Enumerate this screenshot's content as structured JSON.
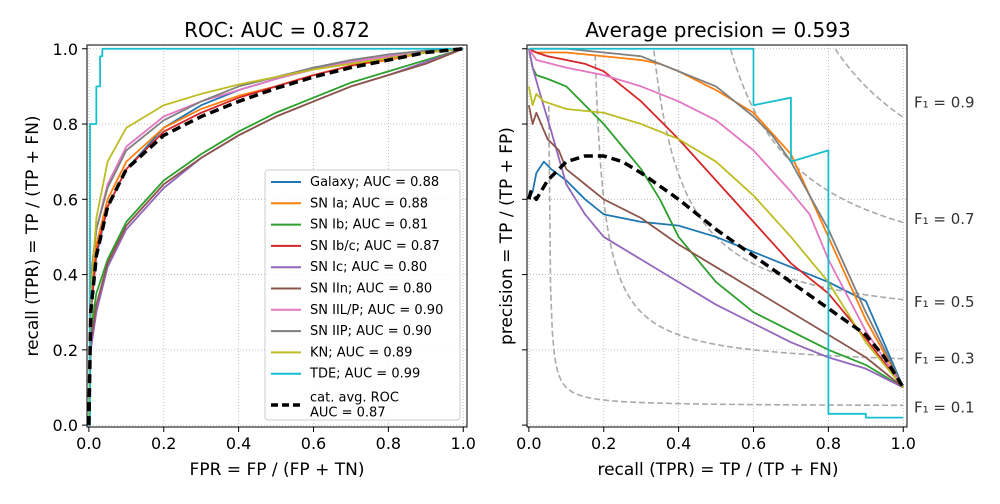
{
  "chart_data": [
    {
      "type": "line",
      "title": "ROC: AUC = 0.872",
      "xlabel": "FPR = FP / (FP + TN)",
      "ylabel": "recall (TPR) = TP / (TP + FN)",
      "xlim": [
        0,
        1
      ],
      "ylim": [
        0,
        1
      ],
      "xticks": [
        "0.0",
        "0.2",
        "0.4",
        "0.6",
        "0.8",
        "1.0"
      ],
      "yticks": [
        "0.0",
        "0.2",
        "0.4",
        "0.6",
        "0.8",
        "1.0"
      ],
      "grid": true,
      "legend_position": "lower-right",
      "series": [
        {
          "name": "Galaxy; AUC = 0.88",
          "color": "#1f77b4",
          "x": [
            0,
            0.005,
            0.02,
            0.05,
            0.1,
            0.2,
            0.3,
            0.4,
            0.5,
            0.6,
            0.7,
            0.8,
            0.9,
            1.0
          ],
          "y": [
            0,
            0.3,
            0.45,
            0.58,
            0.68,
            0.79,
            0.85,
            0.89,
            0.92,
            0.95,
            0.965,
            0.98,
            0.99,
            1.0
          ]
        },
        {
          "name": "SN Ia; AUC = 0.88",
          "color": "#ff7f0e",
          "x": [
            0,
            0.005,
            0.02,
            0.05,
            0.1,
            0.2,
            0.3,
            0.4,
            0.5,
            0.6,
            0.7,
            0.8,
            0.9,
            1.0
          ],
          "y": [
            0,
            0.32,
            0.48,
            0.6,
            0.7,
            0.79,
            0.84,
            0.875,
            0.9,
            0.93,
            0.955,
            0.97,
            0.99,
            1.0
          ]
        },
        {
          "name": "SN Ib; AUC = 0.81",
          "color": "#2ca02c",
          "x": [
            0,
            0.005,
            0.02,
            0.05,
            0.1,
            0.2,
            0.3,
            0.4,
            0.5,
            0.6,
            0.7,
            0.8,
            0.9,
            1.0
          ],
          "y": [
            0,
            0.25,
            0.35,
            0.44,
            0.54,
            0.65,
            0.72,
            0.78,
            0.83,
            0.87,
            0.91,
            0.94,
            0.97,
            1.0
          ]
        },
        {
          "name": "SN Ib/c; AUC = 0.87",
          "color": "#d62728",
          "x": [
            0,
            0.005,
            0.02,
            0.05,
            0.1,
            0.2,
            0.3,
            0.4,
            0.5,
            0.6,
            0.7,
            0.8,
            0.9,
            1.0
          ],
          "y": [
            0,
            0.3,
            0.46,
            0.58,
            0.68,
            0.78,
            0.83,
            0.87,
            0.9,
            0.93,
            0.955,
            0.975,
            0.99,
            1.0
          ]
        },
        {
          "name": "SN Ic; AUC = 0.80",
          "color": "#9467bd",
          "x": [
            0,
            0.005,
            0.02,
            0.05,
            0.1,
            0.2,
            0.3,
            0.4,
            0.5,
            0.6,
            0.7,
            0.8,
            0.9,
            1.0
          ],
          "y": [
            0,
            0.2,
            0.3,
            0.42,
            0.52,
            0.63,
            0.71,
            0.77,
            0.82,
            0.86,
            0.9,
            0.93,
            0.965,
            1.0
          ]
        },
        {
          "name": "SN IIn; AUC = 0.80",
          "color": "#8c564b",
          "x": [
            0,
            0.005,
            0.02,
            0.05,
            0.1,
            0.2,
            0.3,
            0.4,
            0.5,
            0.6,
            0.7,
            0.8,
            0.9,
            1.0
          ],
          "y": [
            0,
            0.22,
            0.32,
            0.43,
            0.53,
            0.64,
            0.71,
            0.77,
            0.82,
            0.86,
            0.9,
            0.93,
            0.96,
            1.0
          ]
        },
        {
          "name": "SN IIL/P; AUC = 0.90",
          "color": "#e377c2",
          "x": [
            0,
            0.005,
            0.02,
            0.05,
            0.1,
            0.2,
            0.3,
            0.4,
            0.5,
            0.6,
            0.7,
            0.8,
            0.9,
            1.0
          ],
          "y": [
            0,
            0.4,
            0.52,
            0.64,
            0.74,
            0.82,
            0.86,
            0.89,
            0.92,
            0.945,
            0.965,
            0.98,
            0.99,
            1.0
          ]
        },
        {
          "name": "SN IIP; AUC = 0.90",
          "color": "#7f7f7f",
          "x": [
            0,
            0.005,
            0.02,
            0.05,
            0.1,
            0.2,
            0.3,
            0.4,
            0.5,
            0.6,
            0.7,
            0.8,
            0.9,
            1.0
          ],
          "y": [
            0,
            0.38,
            0.52,
            0.63,
            0.73,
            0.81,
            0.86,
            0.9,
            0.925,
            0.95,
            0.97,
            0.985,
            0.995,
            1.0
          ]
        },
        {
          "name": "KN; AUC = 0.89",
          "color": "#bcbd22",
          "x": [
            0,
            0.005,
            0.02,
            0.05,
            0.1,
            0.2,
            0.3,
            0.4,
            0.5,
            0.6,
            0.7,
            0.8,
            0.9,
            1.0
          ],
          "y": [
            0,
            0.35,
            0.55,
            0.7,
            0.79,
            0.85,
            0.88,
            0.905,
            0.925,
            0.945,
            0.96,
            0.975,
            0.99,
            1.0
          ]
        },
        {
          "name": "TDE; AUC = 0.99",
          "color": "#17becf",
          "x": [
            0,
            0.003,
            0.003,
            0.02,
            0.02,
            0.03,
            0.03,
            0.036,
            0.036,
            1.0
          ],
          "y": [
            0,
            0,
            0.8,
            0.8,
            0.9,
            0.9,
            0.98,
            0.98,
            1.0,
            1.0
          ]
        },
        {
          "name": "cat. avg. ROC\nAUC = 0.87",
          "color": "#000000",
          "dashed": true,
          "x": [
            0,
            0.005,
            0.02,
            0.05,
            0.1,
            0.2,
            0.3,
            0.4,
            0.5,
            0.6,
            0.7,
            0.8,
            0.9,
            1.0
          ],
          "y": [
            0,
            0.3,
            0.45,
            0.58,
            0.68,
            0.77,
            0.82,
            0.86,
            0.895,
            0.925,
            0.95,
            0.97,
            0.99,
            1.0
          ]
        }
      ]
    },
    {
      "type": "line",
      "title": "Average precision = 0.593",
      "xlabel": "recall (TPR) = TP / (TP + FN)",
      "ylabel": "precision = TP / (TP + FP)",
      "xlim": [
        0,
        1
      ],
      "ylim": [
        0,
        1
      ],
      "xticks": [
        "0.0",
        "0.2",
        "0.4",
        "0.6",
        "0.8",
        "1.0"
      ],
      "grid": true,
      "iso_f1": [
        {
          "f1": 0.1,
          "label": "F₁ = 0.1",
          "label_y": 0.05
        },
        {
          "f1": 0.3,
          "label": "F₁ = 0.3",
          "label_y": 0.18
        },
        {
          "f1": 0.5,
          "label": "F₁ = 0.5",
          "label_y": 0.33
        },
        {
          "f1": 0.7,
          "label": "F₁ = 0.7",
          "label_y": 0.55
        },
        {
          "f1": 0.9,
          "label": "F₁ = 0.9",
          "label_y": 0.86
        }
      ],
      "series": [
        {
          "name": "Galaxy",
          "color": "#1f77b4",
          "x": [
            0.0,
            0.01,
            0.02,
            0.04,
            0.06,
            0.1,
            0.15,
            0.2,
            0.3,
            0.4,
            0.5,
            0.6,
            0.7,
            0.8,
            0.9,
            1.0
          ],
          "y": [
            0.6,
            0.62,
            0.67,
            0.7,
            0.68,
            0.65,
            0.6,
            0.56,
            0.54,
            0.53,
            0.5,
            0.46,
            0.42,
            0.38,
            0.33,
            0.1
          ]
        },
        {
          "name": "SN Ia",
          "color": "#ff7f0e",
          "x": [
            0.0,
            0.02,
            0.1,
            0.2,
            0.3,
            0.35,
            0.4,
            0.5,
            0.6,
            0.7,
            0.8,
            0.9,
            1.0
          ],
          "y": [
            1.0,
            0.99,
            0.99,
            0.98,
            0.97,
            0.96,
            0.94,
            0.89,
            0.83,
            0.72,
            0.5,
            0.28,
            0.1
          ]
        },
        {
          "name": "SN Ib",
          "color": "#2ca02c",
          "x": [
            0.0,
            0.01,
            0.02,
            0.05,
            0.1,
            0.15,
            0.2,
            0.25,
            0.3,
            0.35,
            0.4,
            0.5,
            0.6,
            0.7,
            0.8,
            0.9,
            1.0
          ],
          "y": [
            1.0,
            0.95,
            0.93,
            0.92,
            0.9,
            0.85,
            0.8,
            0.74,
            0.68,
            0.6,
            0.5,
            0.38,
            0.3,
            0.25,
            0.2,
            0.16,
            0.1
          ]
        },
        {
          "name": "SN Ib/c",
          "color": "#d62728",
          "x": [
            0.0,
            0.02,
            0.05,
            0.1,
            0.15,
            0.2,
            0.3,
            0.4,
            0.5,
            0.6,
            0.7,
            0.8,
            0.9,
            1.0
          ],
          "y": [
            1.0,
            0.99,
            0.98,
            0.97,
            0.96,
            0.94,
            0.86,
            0.76,
            0.65,
            0.54,
            0.43,
            0.35,
            0.23,
            0.1
          ]
        },
        {
          "name": "SN Ic",
          "color": "#9467bd",
          "x": [
            0.0,
            0.01,
            0.03,
            0.06,
            0.1,
            0.15,
            0.2,
            0.3,
            0.4,
            0.5,
            0.6,
            0.7,
            0.8,
            0.9,
            1.0
          ],
          "y": [
            1.0,
            0.95,
            0.88,
            0.78,
            0.64,
            0.56,
            0.5,
            0.44,
            0.38,
            0.32,
            0.27,
            0.22,
            0.18,
            0.15,
            0.1
          ]
        },
        {
          "name": "SN IIn",
          "color": "#8c564b",
          "x": [
            0.0,
            0.01,
            0.02,
            0.05,
            0.08,
            0.1,
            0.15,
            0.2,
            0.3,
            0.4,
            0.5,
            0.6,
            0.7,
            0.8,
            0.9,
            1.0
          ],
          "y": [
            0.85,
            0.8,
            0.83,
            0.76,
            0.73,
            0.68,
            0.64,
            0.6,
            0.55,
            0.48,
            0.42,
            0.36,
            0.3,
            0.24,
            0.18,
            0.1
          ]
        },
        {
          "name": "SN IIL/P",
          "color": "#e377c2",
          "x": [
            0.0,
            0.02,
            0.1,
            0.2,
            0.3,
            0.4,
            0.5,
            0.6,
            0.7,
            0.75,
            0.8,
            0.9,
            1.0
          ],
          "y": [
            1.0,
            0.97,
            0.95,
            0.93,
            0.9,
            0.86,
            0.81,
            0.73,
            0.62,
            0.56,
            0.44,
            0.25,
            0.1
          ]
        },
        {
          "name": "SN IIP",
          "color": "#7f7f7f",
          "x": [
            0.0,
            0.1,
            0.2,
            0.3,
            0.35,
            0.4,
            0.5,
            0.6,
            0.65,
            0.7,
            0.8,
            0.9,
            1.0
          ],
          "y": [
            1.0,
            1.0,
            0.99,
            0.98,
            0.96,
            0.94,
            0.9,
            0.82,
            0.77,
            0.7,
            0.52,
            0.3,
            0.1
          ]
        },
        {
          "name": "KN",
          "color": "#bcbd22",
          "x": [
            0.0,
            0.01,
            0.02,
            0.04,
            0.1,
            0.2,
            0.3,
            0.4,
            0.5,
            0.6,
            0.7,
            0.8,
            0.9,
            1.0
          ],
          "y": [
            0.9,
            0.85,
            0.88,
            0.86,
            0.84,
            0.83,
            0.8,
            0.76,
            0.7,
            0.61,
            0.5,
            0.38,
            0.22,
            0.1
          ]
        },
        {
          "name": "TDE",
          "color": "#17becf",
          "x": [
            0.0,
            0.6,
            0.6,
            0.7,
            0.7,
            0.8,
            0.8,
            0.9,
            0.9,
            1.0
          ],
          "y": [
            1.0,
            1.0,
            0.85,
            0.87,
            0.7,
            0.73,
            0.03,
            0.03,
            0.02,
            0.02
          ]
        },
        {
          "name": "cat. avg. ROC",
          "color": "#000000",
          "dashed": true,
          "x": [
            0.0,
            0.005,
            0.02,
            0.05,
            0.1,
            0.15,
            0.2,
            0.25,
            0.3,
            0.4,
            0.5,
            0.6,
            0.7,
            0.8,
            0.9,
            0.95,
            1.0
          ],
          "y": [
            0.6,
            0.62,
            0.6,
            0.65,
            0.7,
            0.715,
            0.715,
            0.7,
            0.67,
            0.6,
            0.52,
            0.45,
            0.38,
            0.31,
            0.24,
            0.18,
            0.1
          ]
        }
      ]
    }
  ]
}
